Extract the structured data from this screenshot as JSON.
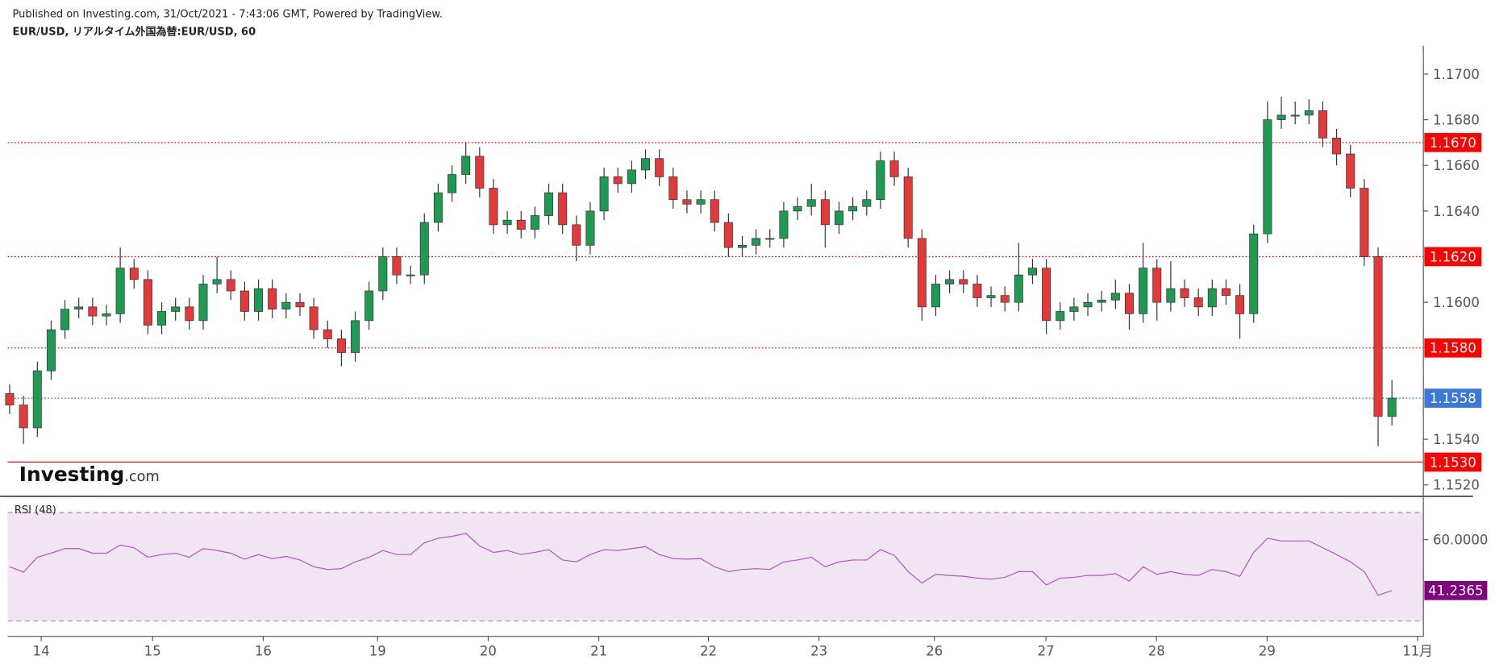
{
  "header": {
    "published": "Published on Investing.com, 31/Oct/2021 - 7:43:06 GMT, Powered by TradingView.",
    "symbol": "EUR/USD, リアルタイム外国為替:EUR/USD, 60",
    "logo": "Investing",
    "logo_suffix": ".com"
  },
  "chart_data": {
    "type": "candlestick",
    "up_color": "#1f9a52",
    "down_color": "#e23a3a",
    "x": [
      0,
      1,
      2,
      3,
      4,
      5,
      6,
      7,
      8,
      9,
      10,
      11,
      12,
      13,
      14,
      15,
      16,
      17,
      18,
      19,
      20,
      21,
      22,
      23,
      24,
      25,
      26,
      27,
      28,
      29,
      30,
      31,
      32,
      33,
      34,
      35,
      36,
      37,
      38,
      39,
      40,
      41,
      42,
      43,
      44,
      45,
      46,
      47,
      48,
      49,
      50,
      51,
      52,
      53,
      54,
      55,
      56,
      57,
      58,
      59,
      60,
      61,
      62,
      63,
      64,
      65,
      66,
      67,
      68,
      69,
      70,
      71,
      72,
      73,
      74,
      75,
      76,
      77,
      78,
      79,
      80,
      81,
      82,
      83,
      84,
      85,
      86,
      87,
      88,
      89,
      90,
      91,
      92,
      93,
      94,
      95,
      96,
      97,
      98,
      99,
      100
    ],
    "open": [
      1.156,
      1.1555,
      1.1545,
      1.157,
      1.1588,
      1.1597,
      1.1598,
      1.1594,
      1.1595,
      1.1615,
      1.161,
      1.159,
      1.1596,
      1.1598,
      1.1592,
      1.1608,
      1.161,
      1.1605,
      1.1596,
      1.1606,
      1.1597,
      1.16,
      1.1598,
      1.1588,
      1.1584,
      1.1578,
      1.1592,
      1.1605,
      1.162,
      1.1612,
      1.1612,
      1.1635,
      1.1648,
      1.1656,
      1.1664,
      1.165,
      1.1634,
      1.1636,
      1.1632,
      1.1638,
      1.1648,
      1.1634,
      1.1625,
      1.164,
      1.1655,
      1.1652,
      1.1658,
      1.1663,
      1.1655,
      1.1645,
      1.1643,
      1.1645,
      1.1635,
      1.1624,
      1.1625,
      1.1628,
      1.1628,
      1.164,
      1.1642,
      1.1645,
      1.1634,
      1.164,
      1.1642,
      1.1645,
      1.1662,
      1.1655,
      1.1628,
      1.1598,
      1.1608,
      1.161,
      1.1608,
      1.1602,
      1.1603,
      1.16,
      1.1612,
      1.1615,
      1.1592,
      1.1596,
      1.1598,
      1.16,
      1.1601,
      1.1604,
      1.1595,
      1.1615,
      1.16,
      1.1606,
      1.1602,
      1.1598,
      1.1606,
      1.1603,
      1.1595,
      1.163,
      1.168,
      1.1682,
      1.1682,
      1.1684,
      1.1672,
      1.1665,
      1.165,
      1.162,
      1.155
    ],
    "high": [
      1.1564,
      1.1559,
      1.1574,
      1.1592,
      1.1601,
      1.1602,
      1.1602,
      1.1599,
      1.1624,
      1.1619,
      1.1614,
      1.16,
      1.1602,
      1.1602,
      1.1612,
      1.162,
      1.1614,
      1.1609,
      1.161,
      1.161,
      1.1604,
      1.1604,
      1.1602,
      1.1592,
      1.1588,
      1.1596,
      1.1609,
      1.1624,
      1.1624,
      1.1616,
      1.1639,
      1.1652,
      1.166,
      1.167,
      1.1668,
      1.1654,
      1.164,
      1.164,
      1.1642,
      1.1652,
      1.1652,
      1.1638,
      1.1644,
      1.1659,
      1.1659,
      1.1662,
      1.1667,
      1.1667,
      1.1659,
      1.1649,
      1.1649,
      1.1649,
      1.1639,
      1.1629,
      1.1632,
      1.1632,
      1.1644,
      1.1646,
      1.1652,
      1.1649,
      1.1644,
      1.1646,
      1.1649,
      1.1666,
      1.1666,
      1.1659,
      1.1632,
      1.1612,
      1.1614,
      1.1614,
      1.1612,
      1.1607,
      1.1607,
      1.1626,
      1.1619,
      1.1619,
      1.16,
      1.1602,
      1.1604,
      1.1605,
      1.161,
      1.1608,
      1.1626,
      1.1619,
      1.1618,
      1.161,
      1.1606,
      1.161,
      1.161,
      1.1608,
      1.1634,
      1.1688,
      1.169,
      1.1688,
      1.1689,
      1.1688,
      1.1676,
      1.1669,
      1.1654,
      1.1624,
      1.1566
    ],
    "low": [
      1.1551,
      1.1538,
      1.1541,
      1.1566,
      1.1584,
      1.1593,
      1.159,
      1.159,
      1.1591,
      1.1606,
      1.1586,
      1.1586,
      1.1592,
      1.1588,
      1.1588,
      1.1604,
      1.1601,
      1.1592,
      1.1592,
      1.1593,
      1.1593,
      1.1594,
      1.1584,
      1.158,
      1.1572,
      1.1574,
      1.1588,
      1.1601,
      1.1608,
      1.1608,
      1.1608,
      1.1631,
      1.1644,
      1.1652,
      1.1646,
      1.163,
      1.163,
      1.1628,
      1.1628,
      1.1634,
      1.163,
      1.1618,
      1.1621,
      1.1636,
      1.1648,
      1.1648,
      1.1654,
      1.1651,
      1.1641,
      1.1639,
      1.1639,
      1.1631,
      1.162,
      1.162,
      1.1621,
      1.1624,
      1.1624,
      1.1636,
      1.1638,
      1.1624,
      1.163,
      1.1636,
      1.1638,
      1.1641,
      1.1651,
      1.1624,
      1.1592,
      1.1594,
      1.1604,
      1.1604,
      1.1598,
      1.1598,
      1.1596,
      1.1596,
      1.1608,
      1.1586,
      1.1588,
      1.1592,
      1.1594,
      1.1596,
      1.1597,
      1.1588,
      1.1591,
      1.1592,
      1.1596,
      1.1598,
      1.1594,
      1.1594,
      1.1599,
      1.1584,
      1.1591,
      1.1626,
      1.1676,
      1.1678,
      1.1678,
      1.1668,
      1.166,
      1.1646,
      1.1616,
      1.1537,
      1.1546
    ],
    "close": [
      1.1555,
      1.1545,
      1.157,
      1.1588,
      1.1597,
      1.1598,
      1.1594,
      1.1595,
      1.1615,
      1.161,
      1.159,
      1.1596,
      1.1598,
      1.1592,
      1.1608,
      1.161,
      1.1605,
      1.1596,
      1.1606,
      1.1597,
      1.16,
      1.1598,
      1.1588,
      1.1584,
      1.1578,
      1.1592,
      1.1605,
      1.162,
      1.1612,
      1.1612,
      1.1635,
      1.1648,
      1.1656,
      1.1664,
      1.165,
      1.1634,
      1.1636,
      1.1632,
      1.1638,
      1.1648,
      1.1634,
      1.1625,
      1.164,
      1.1655,
      1.1652,
      1.1658,
      1.1663,
      1.1655,
      1.1645,
      1.1643,
      1.1645,
      1.1635,
      1.1624,
      1.1625,
      1.1628,
      1.1628,
      1.164,
      1.1642,
      1.1645,
      1.1634,
      1.164,
      1.1642,
      1.1645,
      1.1662,
      1.1655,
      1.1628,
      1.1598,
      1.1608,
      1.161,
      1.1608,
      1.1602,
      1.1603,
      1.16,
      1.1612,
      1.1615,
      1.1592,
      1.1596,
      1.1598,
      1.16,
      1.1601,
      1.1604,
      1.1595,
      1.1615,
      1.16,
      1.1606,
      1.1602,
      1.1598,
      1.1606,
      1.1603,
      1.1595,
      1.163,
      1.168,
      1.1682,
      1.1682,
      1.1684,
      1.1672,
      1.1665,
      1.165,
      1.162,
      1.155,
      1.1558
    ],
    "xlim": [
      -0.14,
      102.07
    ],
    "xticks": [
      {
        "value": 2.28,
        "label": "14"
      },
      {
        "value": 10.34,
        "label": "15"
      },
      {
        "value": 18.34,
        "label": "16"
      },
      {
        "value": 26.62,
        "label": "19"
      },
      {
        "value": 34.62,
        "label": "20"
      },
      {
        "value": 42.62,
        "label": "21"
      },
      {
        "value": 50.55,
        "label": "22"
      },
      {
        "value": 58.55,
        "label": "23"
      },
      {
        "value": 66.9,
        "label": "26"
      },
      {
        "value": 74.97,
        "label": "27"
      },
      {
        "value": 82.97,
        "label": "28"
      },
      {
        "value": 90.97,
        "label": "29"
      },
      {
        "value": 101.86,
        "label": "11月"
      }
    ],
    "ylim": [
      1.1515,
      1.1712
    ],
    "yticks": [
      {
        "value": 1.152,
        "label": "1.1520"
      },
      {
        "value": 1.154,
        "label": "1.1540"
      },
      {
        "value": 1.16,
        "label": "1.1600"
      },
      {
        "value": 1.164,
        "label": "1.1640"
      },
      {
        "value": 1.166,
        "label": "1.1660"
      },
      {
        "value": 1.168,
        "label": "1.1680"
      },
      {
        "value": 1.17,
        "label": "1.1700"
      }
    ],
    "levels": [
      {
        "value": 1.167,
        "label": "1.1670",
        "color": "#ff0000",
        "style": "dotted"
      },
      {
        "value": 1.162,
        "label": "1.1620",
        "color": "#ff0000",
        "style": "dotted"
      },
      {
        "value": 1.158,
        "label": "1.1580",
        "color": "#ff0000",
        "style": "dotted"
      },
      {
        "value": 1.153,
        "label": "1.1530",
        "color": "#ff0000",
        "style": "solid"
      },
      {
        "value": 1.1558,
        "label": "1.1558",
        "color": "#3c78d8",
        "style": "dotted"
      }
    ],
    "rsi": {
      "title": "RSI (48)",
      "color": "#b552c4",
      "band_color": "#f1e4f3",
      "ylim": [
        25.4,
        75.6
      ],
      "bands": [
        70,
        30
      ],
      "yticks": [
        {
          "value": 60,
          "label": "60.0000"
        }
      ],
      "last": {
        "value": 41.2365,
        "label": "41.2365",
        "color": "#800080"
      },
      "values": [
        50,
        48,
        53.5,
        55,
        56.7,
        56.7,
        55,
        55,
        58,
        57,
        53.5,
        54.5,
        55,
        53.5,
        56.7,
        56,
        55,
        52.8,
        54.5,
        53,
        53.8,
        52.5,
        50,
        49,
        49.3,
        51.8,
        53.5,
        56,
        54.5,
        54.5,
        58.8,
        60.5,
        61.2,
        62.3,
        57.7,
        55.3,
        56,
        54.5,
        55.3,
        56.3,
        52.5,
        51.8,
        54.5,
        56.3,
        56,
        56.7,
        57.4,
        54.5,
        53,
        52.8,
        53,
        50,
        48.2,
        49,
        49.3,
        49,
        51.8,
        52.5,
        53.5,
        50,
        51.8,
        52.5,
        52.5,
        56.3,
        54.2,
        48.2,
        44,
        47.2,
        46.8,
        46.5,
        45.8,
        45.4,
        46.1,
        48.2,
        48.2,
        43.3,
        45.8,
        46.1,
        46.8,
        46.8,
        47.5,
        44.7,
        50,
        47.2,
        48.2,
        47.2,
        46.8,
        49,
        48.2,
        46.5,
        55.3,
        60.5,
        59.5,
        59.5,
        59.5,
        57,
        54.5,
        51.8,
        48.2,
        39.5,
        41.2
      ]
    }
  }
}
